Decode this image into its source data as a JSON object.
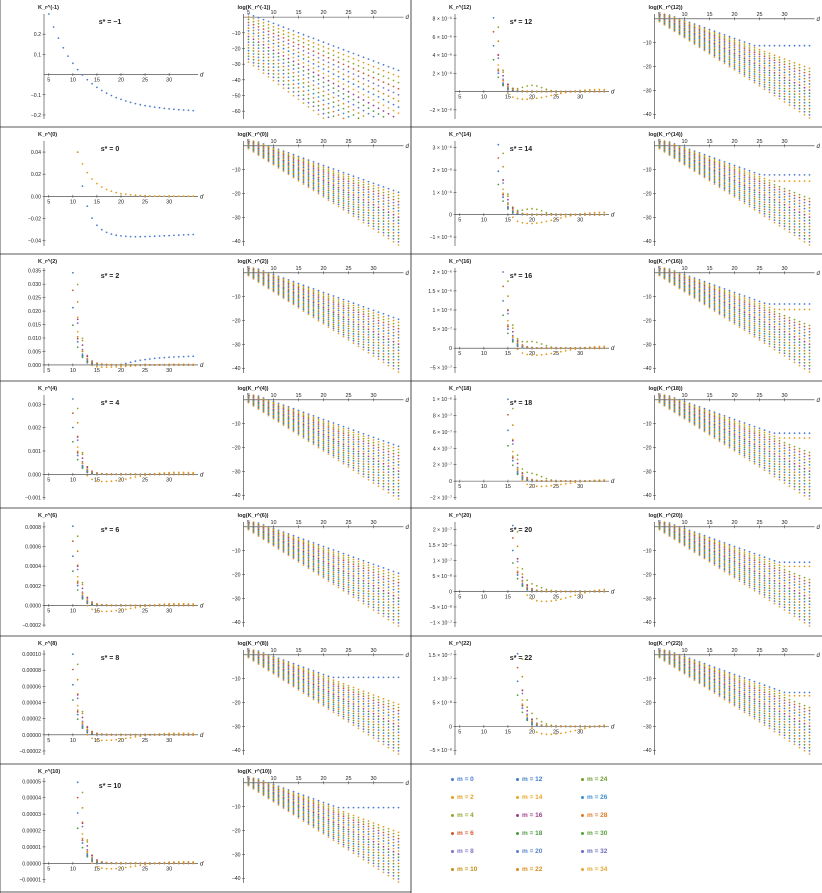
{
  "chart_data": {
    "type": "scatter",
    "xlabel": "d",
    "x_ticks": [
      5,
      10,
      15,
      20,
      25,
      30
    ],
    "x_range": [
      4,
      36
    ],
    "colors": [
      "#4c7bd1",
      "#e39d1c",
      "#8fa82e",
      "#d2572e",
      "#7f72c9",
      "#c58d17",
      "#3d7fc5",
      "#e8a52a",
      "#9c3f8b",
      "#4f9a47",
      "#5a7fd0",
      "#d98a1f",
      "#6f9c2f",
      "#3c8fd4",
      "#e07b22",
      "#5aa03f",
      "#6a6ac0",
      "#e2a733"
    ],
    "legend": [
      "m = 0",
      "m = 2",
      "m = 4",
      "m = 6",
      "m = 8",
      "m = 10",
      "m = 12",
      "m = 14",
      "m = 16",
      "m = 18",
      "m = 20",
      "m = 22",
      "m = 24",
      "m = 26",
      "m = 28",
      "m = 30",
      "m = 32",
      "m = 34"
    ],
    "panels": [
      {
        "id": "lin-m1",
        "kind": "linear",
        "ylabel": "K_r^(-1)",
        "title": "s* = −1",
        "yrange": [
          -0.22,
          0.3
        ],
        "yticks": [
          {
            "v": 0.2,
            "t": "0.2"
          },
          {
            "v": 0.1,
            "t": "0.1"
          },
          {
            "v": -0.1,
            "t": "−0.1"
          },
          {
            "v": -0.2,
            "t": "−0.2"
          }
        ]
      },
      {
        "id": "log-m1",
        "kind": "log",
        "ylabel": "log(K_r^(-1))",
        "yrange": [
          -65,
          2
        ],
        "yticks": [
          {
            "v": -10,
            "t": "−10"
          },
          {
            "v": -20,
            "t": "−20"
          },
          {
            "v": -30,
            "t": "−30"
          },
          {
            "v": -40,
            "t": "−40"
          },
          {
            "v": -50,
            "t": "−50"
          },
          {
            "v": -60,
            "t": "−60"
          }
        ]
      },
      {
        "id": "lin-12",
        "kind": "linear",
        "ylabel": "K_r^(12)",
        "title": "s* = 12",
        "yrange": [
          -3e-06,
          8.5e-06
        ],
        "yticks": [
          {
            "v": 8e-06,
            "t": "8 × 10⁻⁶"
          },
          {
            "v": 6e-06,
            "t": "6 × 10⁻⁶"
          },
          {
            "v": 4e-06,
            "t": "4 × 10⁻⁶"
          },
          {
            "v": 2e-06,
            "t": "2 × 10⁻⁶"
          },
          {
            "v": -2e-06,
            "t": "−2 × 10⁻⁶"
          }
        ]
      },
      {
        "id": "log-12",
        "kind": "log",
        "ylabel": "log(K_r^(12))",
        "yrange": [
          -42,
          2
        ],
        "yticks": [
          {
            "v": -10,
            "t": "−10"
          },
          {
            "v": -20,
            "t": "−20"
          },
          {
            "v": -30,
            "t": "−30"
          },
          {
            "v": -40,
            "t": "−40"
          }
        ]
      },
      {
        "id": "lin-0",
        "kind": "linear",
        "ylabel": "K_r^(0)",
        "title": "s* = 0",
        "yrange": [
          -0.045,
          0.05
        ],
        "yticks": [
          {
            "v": 0.04,
            "t": "0.04"
          },
          {
            "v": 0.02,
            "t": "0.02"
          },
          {
            "v": 0,
            "t": "0.00"
          },
          {
            "v": -0.02,
            "t": "−0.02"
          },
          {
            "v": -0.04,
            "t": "−0.04"
          }
        ]
      },
      {
        "id": "log-0",
        "kind": "log",
        "ylabel": "log(K_r^(0))",
        "yrange": [
          -42,
          2
        ],
        "yticks": [
          {
            "v": -10,
            "t": "−10"
          },
          {
            "v": -20,
            "t": "−20"
          },
          {
            "v": -30,
            "t": "−30"
          },
          {
            "v": -40,
            "t": "−40"
          }
        ]
      },
      {
        "id": "lin-14",
        "kind": "linear",
        "ylabel": "K_r^(14)",
        "title": "s* = 14",
        "yrange": [
          -1.4e-06,
          3.3e-06
        ],
        "yticks": [
          {
            "v": 3e-06,
            "t": "3 × 10⁻⁶"
          },
          {
            "v": 2e-06,
            "t": "2 × 10⁻⁶"
          },
          {
            "v": 1e-06,
            "t": "1 × 10⁻⁶"
          },
          {
            "v": 0,
            "t": "0"
          },
          {
            "v": -1e-06,
            "t": "−1 × 10⁻⁶"
          }
        ]
      },
      {
        "id": "log-14",
        "kind": "log",
        "ylabel": "log(K_r^(14))",
        "yrange": [
          -42,
          2
        ],
        "yticks": [
          {
            "v": -10,
            "t": "−10"
          },
          {
            "v": -20,
            "t": "−20"
          },
          {
            "v": -30,
            "t": "−30"
          },
          {
            "v": -40,
            "t": "−40"
          }
        ]
      },
      {
        "id": "lin-2",
        "kind": "linear",
        "ylabel": "K_r^(2)",
        "title": "s* = 2",
        "yrange": [
          -0.003,
          0.036
        ],
        "yticks": [
          {
            "v": 0.035,
            "t": "0.035"
          },
          {
            "v": 0.03,
            "t": "0.030"
          },
          {
            "v": 0.025,
            "t": "0.025"
          },
          {
            "v": 0.02,
            "t": "0.020"
          },
          {
            "v": 0.015,
            "t": "0.015"
          },
          {
            "v": 0.01,
            "t": "0.010"
          },
          {
            "v": 0.005,
            "t": "0.005"
          },
          {
            "v": 0,
            "t": "0.000"
          }
        ]
      },
      {
        "id": "log-2",
        "kind": "log",
        "ylabel": "log(K_r^(2))",
        "yrange": [
          -42,
          2
        ],
        "yticks": [
          {
            "v": -10,
            "t": "−10"
          },
          {
            "v": -20,
            "t": "−20"
          },
          {
            "v": -30,
            "t": "−30"
          },
          {
            "v": -40,
            "t": "−40"
          }
        ]
      },
      {
        "id": "lin-16",
        "kind": "linear",
        "ylabel": "K_r^(16)",
        "title": "s* = 16",
        "yrange": [
          -6.5e-07,
          2.1e-06
        ],
        "yticks": [
          {
            "v": 2e-06,
            "t": "2 × 10⁻⁶"
          },
          {
            "v": 1.5e-06,
            "t": "1.5 × 10⁻⁶"
          },
          {
            "v": 1e-06,
            "t": "1 × 10⁻⁶"
          },
          {
            "v": 5e-07,
            "t": "5 × 10⁻⁷"
          },
          {
            "v": 0,
            "t": "0"
          },
          {
            "v": -5e-07,
            "t": "−5 × 10⁻⁷"
          }
        ]
      },
      {
        "id": "log-16",
        "kind": "log",
        "ylabel": "log(K_r^(16))",
        "yrange": [
          -42,
          2
        ],
        "yticks": [
          {
            "v": -10,
            "t": "−10"
          },
          {
            "v": -20,
            "t": "−20"
          },
          {
            "v": -30,
            "t": "−30"
          },
          {
            "v": -40,
            "t": "−40"
          }
        ]
      },
      {
        "id": "lin-4",
        "kind": "linear",
        "ylabel": "K_r^(4)",
        "title": "s* = 4",
        "yrange": [
          -0.0011,
          0.0034
        ],
        "yticks": [
          {
            "v": 0.003,
            "t": "0.003"
          },
          {
            "v": 0.002,
            "t": "0.002"
          },
          {
            "v": 0.001,
            "t": "0.001"
          },
          {
            "v": 0,
            "t": "0.000"
          },
          {
            "v": -0.001,
            "t": "−0.001"
          }
        ]
      },
      {
        "id": "log-4",
        "kind": "log",
        "ylabel": "log(K_r^(4))",
        "yrange": [
          -42,
          2
        ],
        "yticks": [
          {
            "v": -10,
            "t": "−10"
          },
          {
            "v": -20,
            "t": "−20"
          },
          {
            "v": -30,
            "t": "−30"
          },
          {
            "v": -40,
            "t": "−40"
          }
        ]
      },
      {
        "id": "lin-18",
        "kind": "linear",
        "ylabel": "K_r^(18)",
        "title": "s* = 18",
        "yrange": [
          -2.3e-07,
          1.05e-06
        ],
        "yticks": [
          {
            "v": 1e-06,
            "t": "1 × 10⁻⁶"
          },
          {
            "v": 8e-07,
            "t": "8 × 10⁻⁷"
          },
          {
            "v": 6e-07,
            "t": "6 × 10⁻⁷"
          },
          {
            "v": 4e-07,
            "t": "4 × 10⁻⁷"
          },
          {
            "v": 2e-07,
            "t": "2 × 10⁻⁷"
          },
          {
            "v": 0,
            "t": "0"
          },
          {
            "v": -2e-07,
            "t": "−2 × 10⁻⁷"
          }
        ]
      },
      {
        "id": "log-18",
        "kind": "log",
        "ylabel": "log(K_r^(18))",
        "yrange": [
          -42,
          2
        ],
        "yticks": [
          {
            "v": -10,
            "t": "−10"
          },
          {
            "v": -20,
            "t": "−20"
          },
          {
            "v": -30,
            "t": "−30"
          },
          {
            "v": -40,
            "t": "−40"
          }
        ]
      },
      {
        "id": "lin-6",
        "kind": "linear",
        "ylabel": "K_r^(6)",
        "title": "s* = 6",
        "yrange": [
          -0.00022,
          0.00085
        ],
        "yticks": [
          {
            "v": 0.0008,
            "t": "0.0008"
          },
          {
            "v": 0.0006,
            "t": "0.0006"
          },
          {
            "v": 0.0004,
            "t": "0.0004"
          },
          {
            "v": 0.0002,
            "t": "0.0002"
          },
          {
            "v": 0,
            "t": "0.0000"
          },
          {
            "v": -0.0002,
            "t": "−0.0002"
          }
        ]
      },
      {
        "id": "log-6",
        "kind": "log",
        "ylabel": "log(K_r^(6))",
        "yrange": [
          -42,
          2
        ],
        "yticks": [
          {
            "v": -10,
            "t": "−10"
          },
          {
            "v": -20,
            "t": "−20"
          },
          {
            "v": -30,
            "t": "−30"
          },
          {
            "v": -40,
            "t": "−40"
          }
        ]
      },
      {
        "id": "lin-20",
        "kind": "linear",
        "ylabel": "K_r^(20)",
        "title": "s* = 20",
        "yrange": [
          -1.15e-07,
          2.25e-07
        ],
        "yticks": [
          {
            "v": 2e-07,
            "t": "2 × 10⁻⁷"
          },
          {
            "v": 1.5e-07,
            "t": "1.5 × 10⁻⁷"
          },
          {
            "v": 1e-07,
            "t": "1 × 10⁻⁷"
          },
          {
            "v": 5e-08,
            "t": "5 × 10⁻⁸"
          },
          {
            "v": 0,
            "t": "0"
          },
          {
            "v": -5e-08,
            "t": "−5 × 10⁻⁸"
          },
          {
            "v": -1e-07,
            "t": "−1 × 10⁻⁷"
          }
        ]
      },
      {
        "id": "log-20",
        "kind": "log",
        "ylabel": "log(K_r^(20))",
        "yrange": [
          -42,
          2
        ],
        "yticks": [
          {
            "v": -10,
            "t": "−10"
          },
          {
            "v": -20,
            "t": "−20"
          },
          {
            "v": -30,
            "t": "−30"
          },
          {
            "v": -40,
            "t": "−40"
          }
        ]
      },
      {
        "id": "lin-8",
        "kind": "linear",
        "ylabel": "K_r^(8)",
        "title": "s* = 8",
        "yrange": [
          -2.5e-05,
          0.000105
        ],
        "yticks": [
          {
            "v": 0.0001,
            "t": "0.00010"
          },
          {
            "v": 8e-05,
            "t": "0.00008"
          },
          {
            "v": 6e-05,
            "t": "0.00006"
          },
          {
            "v": 4e-05,
            "t": "0.00004"
          },
          {
            "v": 2e-05,
            "t": "0.00002"
          },
          {
            "v": 0,
            "t": "0.00000"
          },
          {
            "v": -2e-05,
            "t": "−0.00002"
          }
        ]
      },
      {
        "id": "log-8",
        "kind": "log",
        "ylabel": "log(K_r^(8))",
        "yrange": [
          -42,
          2
        ],
        "yticks": [
          {
            "v": -10,
            "t": "−10"
          },
          {
            "v": -20,
            "t": "−20"
          },
          {
            "v": -30,
            "t": "−30"
          },
          {
            "v": -40,
            "t": "−40"
          }
        ]
      },
      {
        "id": "lin-22",
        "kind": "linear",
        "ylabel": "K_r^(22)",
        "title": "s* = 22",
        "yrange": [
          -6e-08,
          1.6e-07
        ],
        "yticks": [
          {
            "v": 1.5e-07,
            "t": "1.5 × 10⁻⁷"
          },
          {
            "v": 1e-07,
            "t": "1 × 10⁻⁷"
          },
          {
            "v": 5e-08,
            "t": "5 × 10⁻⁸"
          },
          {
            "v": 0,
            "t": "0"
          },
          {
            "v": -5e-08,
            "t": "−5 × 10⁻⁸"
          }
        ]
      },
      {
        "id": "log-22",
        "kind": "log",
        "ylabel": "log(K_r^(22))",
        "yrange": [
          -42,
          2
        ],
        "yticks": [
          {
            "v": -10,
            "t": "−10"
          },
          {
            "v": -20,
            "t": "−20"
          },
          {
            "v": -30,
            "t": "−30"
          },
          {
            "v": -40,
            "t": "−40"
          }
        ]
      },
      {
        "id": "lin-10",
        "kind": "linear",
        "ylabel": "K_r^(10)",
        "title": "s* = 10",
        "yrange": [
          -1.2e-05,
          5.2e-05
        ],
        "yticks": [
          {
            "v": 5e-05,
            "t": "0.00005"
          },
          {
            "v": 4e-05,
            "t": "0.00004"
          },
          {
            "v": 3e-05,
            "t": "0.00003"
          },
          {
            "v": 2e-05,
            "t": "0.00002"
          },
          {
            "v": 1e-05,
            "t": "0.00001"
          },
          {
            "v": 0,
            "t": "0.00000"
          },
          {
            "v": -1e-05,
            "t": "−0.00001"
          }
        ]
      },
      {
        "id": "log-10",
        "kind": "log",
        "ylabel": "log(K_r^(10))",
        "yrange": [
          -42,
          2
        ],
        "yticks": [
          {
            "v": -10,
            "t": "−10"
          },
          {
            "v": -20,
            "t": "−20"
          },
          {
            "v": -30,
            "t": "−30"
          },
          {
            "v": -40,
            "t": "−40"
          }
        ]
      }
    ]
  }
}
